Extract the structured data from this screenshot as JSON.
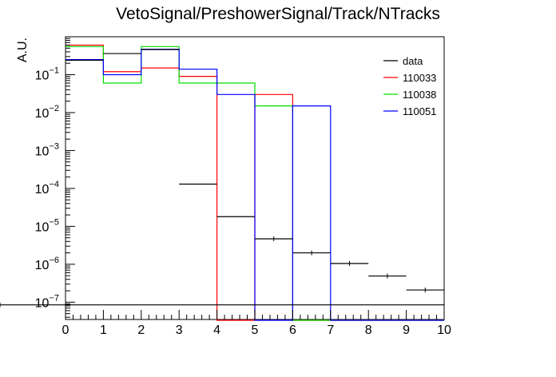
{
  "chart_data": {
    "type": "line",
    "title": "VetoSignal/PreshowerSignal/Track/NTracks",
    "xlabel": "",
    "ylabel": "A.U.",
    "xlim": [
      0,
      10
    ],
    "ylim": [
      3.5e-08,
      1.0
    ],
    "yscale": "log",
    "x_ticks": [
      "0",
      "1",
      "2",
      "3",
      "4",
      "5",
      "6",
      "7",
      "8",
      "9",
      "10"
    ],
    "y_ticks": [
      {
        "value": 1e-07,
        "base": "10",
        "exp": "−7"
      },
      {
        "value": 1e-06,
        "base": "10",
        "exp": "−6"
      },
      {
        "value": 1e-05,
        "base": "10",
        "exp": "−5"
      },
      {
        "value": 0.0001,
        "base": "10",
        "exp": "−4"
      },
      {
        "value": 0.001,
        "base": "10",
        "exp": "−3"
      },
      {
        "value": 0.01,
        "base": "10",
        "exp": "−2"
      },
      {
        "value": 0.1,
        "base": "10",
        "exp": "−1"
      }
    ],
    "bin_edges": [
      0,
      1,
      2,
      3,
      4,
      5,
      6,
      7,
      8,
      9,
      10
    ],
    "legend_position": "top-right",
    "series": [
      {
        "name": "data",
        "color": "#000000",
        "style": "markers",
        "values": [
          0.24,
          0.36,
          0.46,
          0.00013,
          1.8e-05,
          4.7e-06,
          2e-06,
          1.05e-06,
          4.9e-07,
          2.1e-07,
          8.5e-08
        ]
      },
      {
        "name": "110033",
        "color": "#ff0000",
        "style": "hist",
        "values": [
          0.6,
          0.12,
          0.15,
          0.09,
          0,
          0.03,
          0,
          0,
          0,
          0
        ]
      },
      {
        "name": "110038",
        "color": "#00dd00",
        "style": "hist",
        "values": [
          0.55,
          0.06,
          0.55,
          0.06,
          0.06,
          0.015,
          0,
          0,
          0,
          0
        ]
      },
      {
        "name": "110051",
        "color": "#0000ff",
        "style": "hist",
        "values": [
          0.25,
          0.1,
          0.47,
          0.14,
          0.03,
          0.0,
          0.015,
          0,
          0,
          0
        ]
      }
    ]
  }
}
